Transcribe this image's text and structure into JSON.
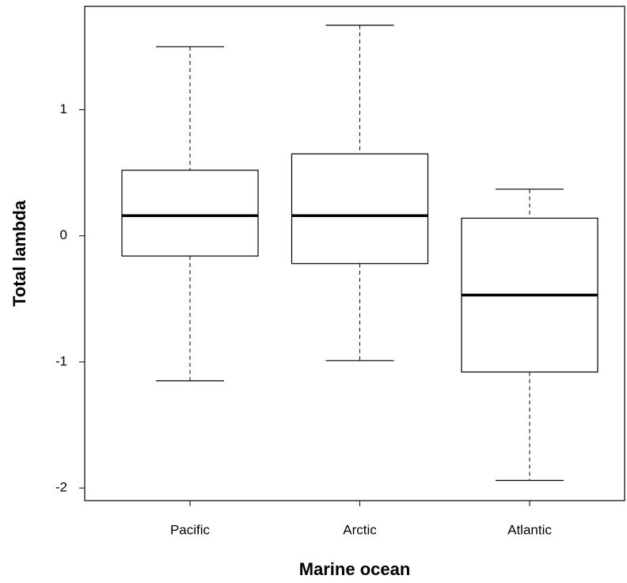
{
  "chart_data": {
    "type": "box",
    "x_label": "Marine ocean",
    "y_label": "Total lambda",
    "categories": [
      "Pacific",
      "Arctic",
      "Atlantic"
    ],
    "boxes": [
      {
        "min": -1.15,
        "q1": -0.16,
        "median": 0.16,
        "q3": 0.52,
        "max": 1.5
      },
      {
        "min": -0.99,
        "q1": -0.22,
        "median": 0.16,
        "q3": 0.65,
        "max": 1.67
      },
      {
        "min": -1.94,
        "q1": -1.08,
        "median": -0.47,
        "q3": 0.14,
        "max": 0.37
      }
    ],
    "ylim": [
      -2.1,
      1.82
    ],
    "yticks": [
      -2,
      -1,
      0,
      1
    ],
    "color": "#000000"
  }
}
